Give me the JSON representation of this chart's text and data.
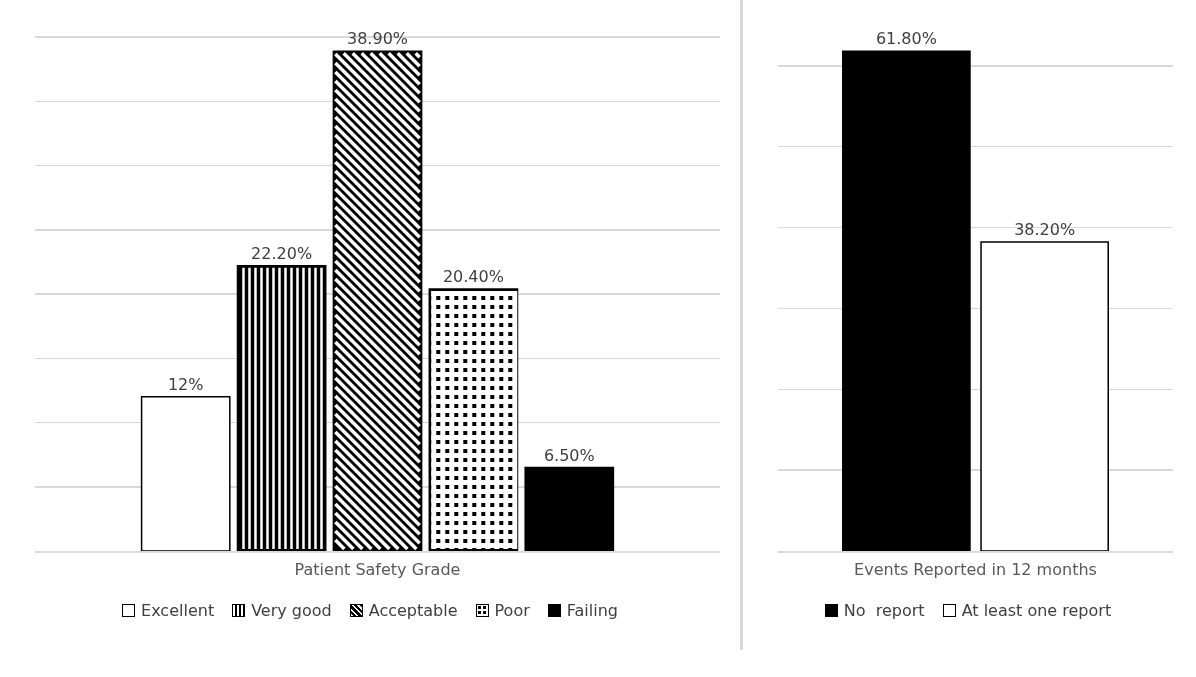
{
  "chart_data": [
    {
      "type": "bar",
      "xlabel": "Patient Safety Grade",
      "categories": [
        null
      ],
      "grid": "y",
      "tick_labels": false,
      "legend": "bottom",
      "series": [
        {
          "name": "Excellent",
          "color": "#ffffff",
          "values": [
            12
          ],
          "value_labels": [
            "12%"
          ]
        },
        {
          "name": "Very good",
          "color": "#000000",
          "values": [
            22.2
          ],
          "value_labels": [
            "22.20%"
          ]
        },
        {
          "name": "Acceptable",
          "color": "#000000",
          "values": [
            38.9
          ],
          "value_labels": [
            "38.90%"
          ]
        },
        {
          "name": "Poor",
          "color": "#000000",
          "values": [
            20.4
          ],
          "value_labels": [
            "20.40%"
          ]
        },
        {
          "name": "Failing",
          "color": "#000000",
          "values": [
            6.5
          ],
          "value_labels": [
            "6.50%"
          ]
        }
      ]
    },
    {
      "type": "bar",
      "xlabel": "Events Reported in 12 months",
      "categories": [
        null
      ],
      "grid": "y",
      "tick_labels": false,
      "legend": "bottom",
      "series": [
        {
          "name": "No  report",
          "color": "#000000",
          "values": [
            61.8
          ],
          "value_labels": [
            "61.80%"
          ]
        },
        {
          "name": "At least one report",
          "color": "#ffffff",
          "values": [
            38.2
          ],
          "value_labels": [
            "38.20%"
          ]
        }
      ]
    }
  ]
}
